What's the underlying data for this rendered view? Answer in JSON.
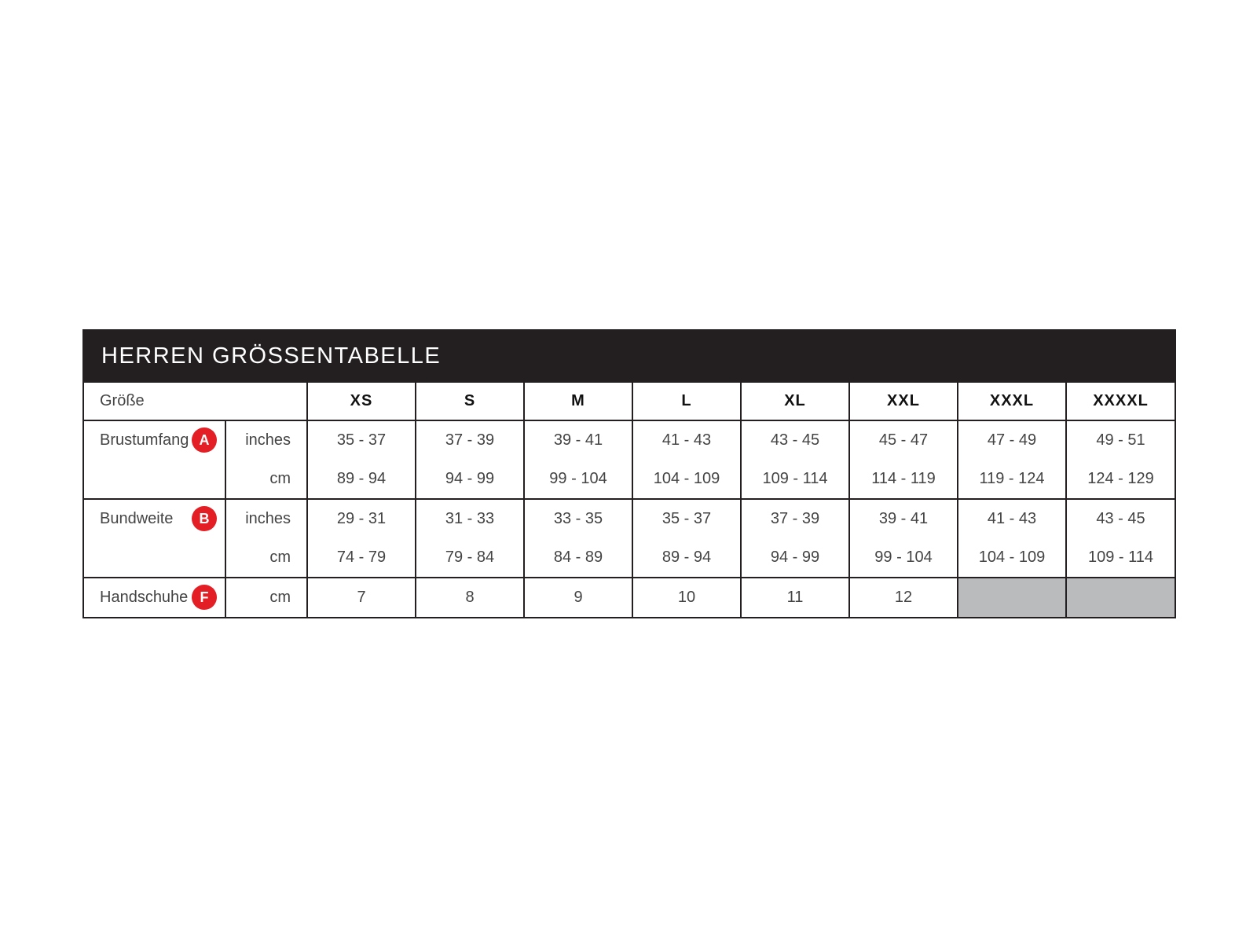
{
  "title": "HERREN GRÖSSENTABELLE",
  "header": {
    "label": "Größe",
    "sizes": [
      "XS",
      "S",
      "M",
      "L",
      "XL",
      "XXL",
      "XXXL",
      "XXXXL"
    ]
  },
  "rows": [
    {
      "label": "Brustumfang",
      "badge": "A",
      "units": [
        "inches",
        "cm"
      ],
      "inches": [
        "35  -  37",
        "37 - 39",
        "39 - 41",
        "41 - 43",
        "43 - 45",
        "45 - 47",
        "47 - 49",
        "49 - 51"
      ],
      "cm": [
        "89 - 94",
        "94 - 99",
        "99 - 104",
        "104 - 109",
        "109 - 114",
        "114 - 119",
        "119 - 124",
        "124 - 129"
      ]
    },
    {
      "label": "Bundweite",
      "badge": "B",
      "units": [
        "inches",
        "cm"
      ],
      "inches": [
        "29 - 31",
        "31 - 33",
        "33 - 35",
        "35 - 37",
        "37 - 39",
        "39 - 41",
        "41 - 43",
        "43 - 45"
      ],
      "cm": [
        "74 - 79",
        "79 - 84",
        "84 - 89",
        "89 - 94",
        "94 - 99",
        "99 - 104",
        "104 - 109",
        "109 - 114"
      ]
    },
    {
      "label": "Handschuhe",
      "badge": "F",
      "unit": "cm",
      "values": [
        "7",
        "8",
        "9",
        "10",
        "11",
        "12",
        null,
        null
      ]
    }
  ],
  "colors": {
    "header_bg": "#231f20",
    "badge": "#e31e24",
    "unavailable": "#b9bbbd"
  }
}
